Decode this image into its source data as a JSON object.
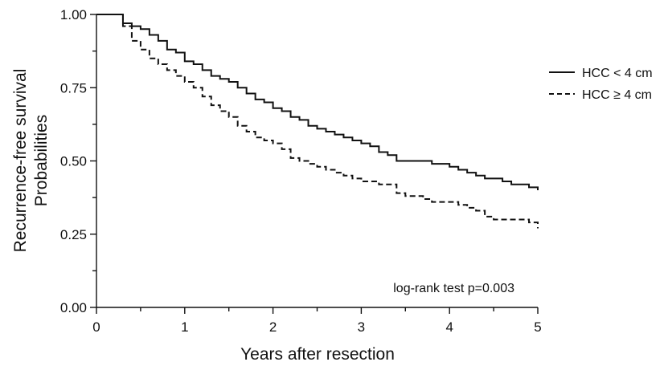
{
  "chart_data": {
    "type": "line",
    "step": true,
    "title": "",
    "xlabel": "Years after resection",
    "ylabel_lines": [
      "Recurrence-free survival",
      "Probabilities"
    ],
    "xlim": [
      0,
      5
    ],
    "ylim": [
      0,
      1
    ],
    "xticks": [
      0,
      1,
      2,
      3,
      4,
      5
    ],
    "xtick_labels": [
      "0",
      "1",
      "2",
      "3",
      "4",
      "5"
    ],
    "yticks": [
      0,
      0.25,
      0.5,
      0.75,
      1.0
    ],
    "ytick_labels": [
      "0.00",
      "0.25",
      "0.50",
      "0.75",
      "1.00"
    ],
    "grid": false,
    "legend_position": "right",
    "annotation": "log-rank test p=0.003",
    "series": [
      {
        "name": "HCC < 4 cm",
        "style": "solid",
        "color": "#111111",
        "x": [
          0,
          0.3,
          0.4,
          0.5,
          0.6,
          0.7,
          0.8,
          0.9,
          1.0,
          1.1,
          1.2,
          1.3,
          1.4,
          1.5,
          1.6,
          1.7,
          1.8,
          1.9,
          2.0,
          2.1,
          2.2,
          2.3,
          2.4,
          2.5,
          2.6,
          2.7,
          2.8,
          2.9,
          3.0,
          3.1,
          3.2,
          3.3,
          3.4,
          3.5,
          3.6,
          3.7,
          3.8,
          3.9,
          4.0,
          4.1,
          4.2,
          4.3,
          4.4,
          4.5,
          4.6,
          4.7,
          4.8,
          4.9,
          5.0
        ],
        "y": [
          1.0,
          0.97,
          0.96,
          0.95,
          0.93,
          0.91,
          0.88,
          0.87,
          0.84,
          0.83,
          0.81,
          0.79,
          0.78,
          0.77,
          0.75,
          0.73,
          0.71,
          0.7,
          0.68,
          0.67,
          0.65,
          0.64,
          0.62,
          0.61,
          0.6,
          0.59,
          0.58,
          0.57,
          0.56,
          0.55,
          0.53,
          0.52,
          0.5,
          0.5,
          0.5,
          0.5,
          0.49,
          0.49,
          0.48,
          0.47,
          0.46,
          0.45,
          0.44,
          0.44,
          0.43,
          0.42,
          0.42,
          0.41,
          0.4
        ]
      },
      {
        "name": "HCC ≥ 4 cm",
        "style": "dashed",
        "color": "#111111",
        "x": [
          0,
          0.3,
          0.4,
          0.5,
          0.6,
          0.7,
          0.8,
          0.9,
          1.0,
          1.1,
          1.2,
          1.3,
          1.4,
          1.5,
          1.6,
          1.7,
          1.8,
          1.9,
          2.0,
          2.1,
          2.2,
          2.3,
          2.4,
          2.5,
          2.6,
          2.7,
          2.8,
          2.9,
          3.0,
          3.1,
          3.2,
          3.3,
          3.4,
          3.5,
          3.6,
          3.7,
          3.8,
          3.9,
          4.0,
          4.1,
          4.2,
          4.3,
          4.4,
          4.5,
          4.6,
          4.7,
          4.8,
          4.9,
          5.0
        ],
        "y": [
          1.0,
          0.96,
          0.91,
          0.88,
          0.85,
          0.83,
          0.81,
          0.79,
          0.77,
          0.75,
          0.72,
          0.69,
          0.67,
          0.65,
          0.62,
          0.6,
          0.58,
          0.57,
          0.56,
          0.54,
          0.51,
          0.5,
          0.49,
          0.48,
          0.47,
          0.46,
          0.45,
          0.44,
          0.43,
          0.43,
          0.42,
          0.42,
          0.39,
          0.38,
          0.38,
          0.37,
          0.36,
          0.36,
          0.36,
          0.35,
          0.34,
          0.33,
          0.31,
          0.3,
          0.3,
          0.3,
          0.3,
          0.29,
          0.27
        ]
      }
    ]
  }
}
